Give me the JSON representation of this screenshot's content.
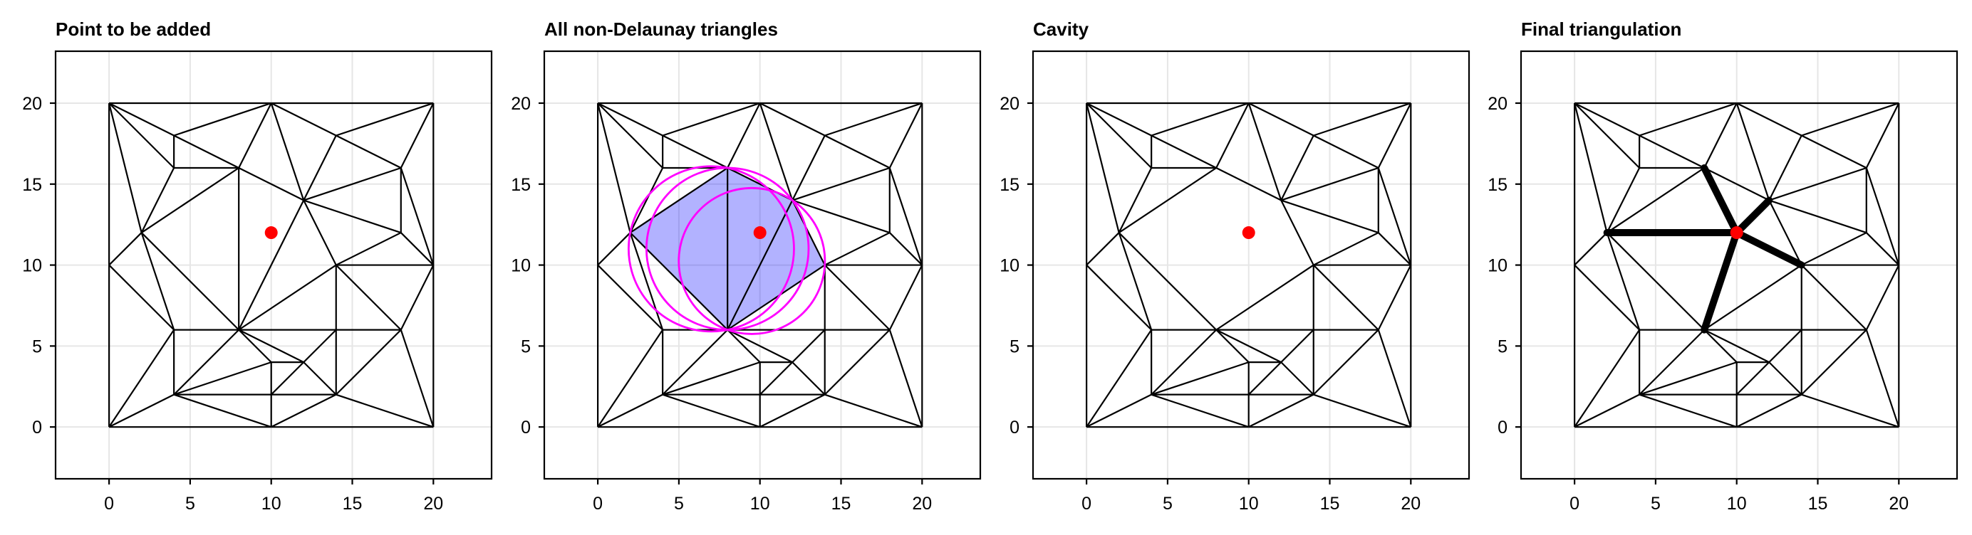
{
  "chart_data": {
    "type": "scatter",
    "description": "Four-panel Delaunay triangulation insertion demo (Bowyer-Watson): triangulated 20x20 point set, non-Delaunay triangles with circumcircles, cavity, and final re-triangulation",
    "shared": {
      "vertices": [
        [
          0,
          0
        ],
        [
          10,
          0
        ],
        [
          20,
          0
        ],
        [
          0,
          10
        ],
        [
          0,
          20
        ],
        [
          10,
          20
        ],
        [
          20,
          20
        ],
        [
          20,
          10
        ],
        [
          4,
          18
        ],
        [
          4,
          16
        ],
        [
          8,
          16
        ],
        [
          2,
          12
        ],
        [
          4,
          6
        ],
        [
          8,
          6
        ],
        [
          4,
          2
        ],
        [
          10,
          4
        ],
        [
          10,
          2
        ],
        [
          12,
          4
        ],
        [
          14,
          2
        ],
        [
          14,
          6
        ],
        [
          14,
          10
        ],
        [
          18,
          6
        ],
        [
          14,
          18
        ],
        [
          18,
          16
        ],
        [
          12,
          14
        ],
        [
          18,
          12
        ]
      ],
      "edges": [
        [
          0,
          1
        ],
        [
          1,
          2
        ],
        [
          2,
          7
        ],
        [
          7,
          6
        ],
        [
          6,
          5
        ],
        [
          5,
          4
        ],
        [
          4,
          3
        ],
        [
          3,
          0
        ],
        [
          4,
          8
        ],
        [
          4,
          9
        ],
        [
          4,
          11
        ],
        [
          8,
          9
        ],
        [
          8,
          10
        ],
        [
          8,
          5
        ],
        [
          9,
          10
        ],
        [
          9,
          11
        ],
        [
          10,
          5
        ],
        [
          10,
          11
        ],
        [
          10,
          24
        ],
        [
          10,
          13
        ],
        [
          11,
          3
        ],
        [
          11,
          12
        ],
        [
          11,
          13
        ],
        [
          12,
          3
        ],
        [
          12,
          0
        ],
        [
          12,
          13
        ],
        [
          12,
          14
        ],
        [
          13,
          14
        ],
        [
          13,
          15
        ],
        [
          13,
          17
        ],
        [
          13,
          19
        ],
        [
          13,
          20
        ],
        [
          13,
          24
        ],
        [
          14,
          0
        ],
        [
          14,
          15
        ],
        [
          14,
          16
        ],
        [
          14,
          1
        ],
        [
          15,
          16
        ],
        [
          15,
          17
        ],
        [
          16,
          17
        ],
        [
          16,
          18
        ],
        [
          16,
          1
        ],
        [
          17,
          18
        ],
        [
          17,
          19
        ],
        [
          18,
          1
        ],
        [
          18,
          19
        ],
        [
          18,
          21
        ],
        [
          18,
          2
        ],
        [
          19,
          20
        ],
        [
          19,
          21
        ],
        [
          20,
          21
        ],
        [
          20,
          7
        ],
        [
          20,
          24
        ],
        [
          20,
          25
        ],
        [
          21,
          2
        ],
        [
          21,
          7
        ],
        [
          22,
          5
        ],
        [
          22,
          23
        ],
        [
          22,
          24
        ],
        [
          22,
          6
        ],
        [
          23,
          6
        ],
        [
          23,
          7
        ],
        [
          23,
          24
        ],
        [
          23,
          25
        ],
        [
          24,
          5
        ],
        [
          24,
          25
        ],
        [
          25,
          7
        ]
      ],
      "cavity_interior_edges": [
        [
          10,
          13
        ],
        [
          13,
          24
        ]
      ],
      "cavity_polygon_vertex_indices": [
        11,
        10,
        24,
        20,
        13
      ],
      "cavity_triangles": [
        [
          11,
          10,
          13
        ],
        [
          10,
          24,
          13
        ],
        [
          24,
          20,
          13
        ]
      ],
      "new_point": [
        10,
        12
      ],
      "circumcircles": [
        {
          "cx": 7,
          "cy": 11,
          "r": 5.099
        },
        {
          "cx": 8,
          "cy": 11,
          "r": 5.0
        },
        {
          "cx": 9.5,
          "cy": 10.25,
          "r": 4.507
        }
      ],
      "x_ticks": [
        0,
        5,
        10,
        15,
        20
      ],
      "y_ticks": [
        0,
        5,
        10,
        15,
        20
      ],
      "x_range": [
        -3.3,
        23.6
      ],
      "y_range": [
        -3.2,
        23.2
      ],
      "grid": true,
      "legend": "none"
    },
    "panels": [
      {
        "title": "Point to be added",
        "show_all_edges": true,
        "show_cavity_fill": false,
        "show_circles": false,
        "show_new_point": true,
        "show_spokes": false
      },
      {
        "title": "All non-Delaunay triangles",
        "show_all_edges": true,
        "show_cavity_fill": true,
        "show_circles": true,
        "show_new_point": true,
        "show_spokes": false
      },
      {
        "title": "Cavity",
        "show_all_edges": false,
        "show_cavity_fill": false,
        "show_circles": false,
        "show_new_point": true,
        "show_spokes": false
      },
      {
        "title": "Final triangulation",
        "show_all_edges": false,
        "show_cavity_fill": false,
        "show_circles": false,
        "show_new_point": true,
        "show_spokes": true
      }
    ],
    "colors": {
      "edge": "#000000",
      "thick_edge": "#000000",
      "grid": "#e6e6e6",
      "box": "#000000",
      "point": "#ff0000",
      "circumcircle": "#ff00ff",
      "cavity_fill": "#0000ff",
      "cavity_fill_opacity": 0.3,
      "background": "#ffffff"
    }
  }
}
